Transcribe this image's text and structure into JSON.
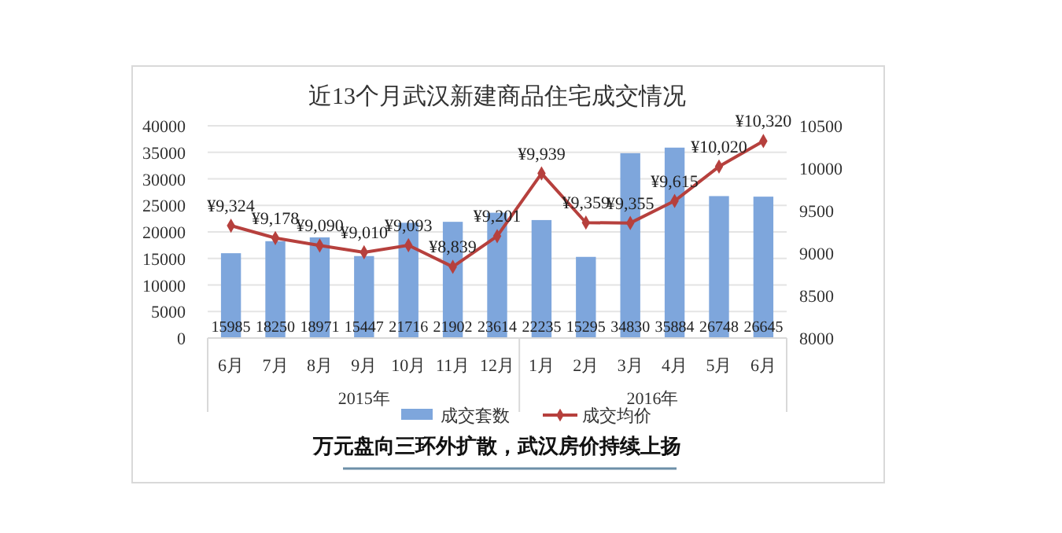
{
  "chart_data": {
    "type": "bar",
    "title": "近13个月武汉新建商品住宅成交情况",
    "categories": [
      "6月",
      "7月",
      "8月",
      "9月",
      "10月",
      "11月",
      "12月",
      "1月",
      "2月",
      "3月",
      "4月",
      "5月",
      "6月"
    ],
    "series": [
      {
        "name": "成交套数",
        "color": "#7ea6dc",
        "values": [
          15985,
          18250,
          18971,
          15447,
          21716,
          21902,
          23614,
          22235,
          15295,
          34830,
          35884,
          26748,
          26645
        ]
      },
      {
        "name": "成交均价",
        "type": "line",
        "axis": "y2",
        "color": "#b6403d",
        "marker": "diamond",
        "values": [
          9324,
          9178,
          9090,
          9010,
          9093,
          8839,
          9201,
          9939,
          9359,
          9355,
          9615,
          10020,
          10320
        ],
        "value_labels": [
          "¥9,324",
          "¥9,178",
          "¥9,090",
          "¥9,010",
          "¥9,093",
          "¥8,839",
          "¥9,201",
          "¥9,939",
          "¥9,359",
          "¥9,355",
          "¥9,615",
          "¥10,020",
          "¥10,320"
        ]
      }
    ],
    "data_labels": true,
    "ylim": [
      0,
      40000
    ],
    "yticks": [
      0,
      5000,
      10000,
      15000,
      20000,
      25000,
      30000,
      35000,
      40000
    ],
    "y2lim": [
      8000,
      10500
    ],
    "y2ticks": [
      8000,
      8500,
      9000,
      9500,
      10000,
      10500
    ],
    "grid": "y",
    "legend": "bottom",
    "annotations": [
      "2015年",
      "2016年",
      "万元盘向三环外扩散，武汉房价持续上扬"
    ]
  }
}
